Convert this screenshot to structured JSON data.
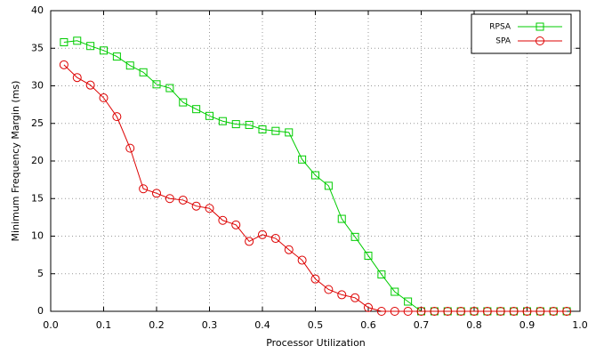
{
  "chart_data": {
    "type": "line",
    "x_label": "Processor Utilization",
    "y_label": "Minimum Frequency Margin (ms)",
    "x": [
      0.025,
      0.05,
      0.075,
      0.1,
      0.125,
      0.15,
      0.175,
      0.2,
      0.225,
      0.25,
      0.275,
      0.3,
      0.325,
      0.35,
      0.375,
      0.4,
      0.425,
      0.45,
      0.475,
      0.5,
      0.525,
      0.55,
      0.575,
      0.6,
      0.625,
      0.65,
      0.675,
      0.7,
      0.725,
      0.75,
      0.775,
      0.8,
      0.825,
      0.85,
      0.875,
      0.9,
      0.925,
      0.95,
      0.975
    ],
    "series": [
      {
        "name": "RPSA",
        "color": "#00cc00",
        "marker": "square",
        "values": [
          35.8,
          36.0,
          35.3,
          34.7,
          33.9,
          32.7,
          31.8,
          30.2,
          29.7,
          27.8,
          26.9,
          26.0,
          25.3,
          24.9,
          24.8,
          24.2,
          24.0,
          23.8,
          20.2,
          18.1,
          16.7,
          12.3,
          9.9,
          7.4,
          4.9,
          2.6,
          1.3,
          0,
          0,
          0,
          0,
          0,
          0,
          0,
          0,
          0,
          0,
          0,
          0
        ]
      },
      {
        "name": "SPA",
        "color": "#dd0000",
        "marker": "circle",
        "values": [
          32.8,
          31.1,
          30.1,
          28.4,
          25.9,
          21.7,
          16.3,
          15.7,
          15.0,
          14.8,
          14.0,
          13.7,
          12.1,
          11.5,
          9.3,
          10.2,
          9.7,
          8.2,
          6.8,
          4.3,
          2.9,
          2.2,
          1.8,
          0.5,
          0,
          0,
          0,
          0,
          0,
          0,
          0,
          0,
          0,
          0,
          0,
          0,
          0,
          0,
          0
        ]
      }
    ],
    "xlim": [
      0,
      1
    ],
    "xticks": [
      {
        "value": 0,
        "label": "0.0"
      },
      0.1,
      0.2,
      0.3,
      0.4,
      0.5,
      0.6,
      0.7,
      0.8,
      0.9,
      {
        "value": 1,
        "label": "1.0"
      }
    ],
    "ylim": [
      0,
      40
    ],
    "yticks": [
      0,
      5,
      10,
      15,
      20,
      25,
      30,
      35,
      40
    ],
    "grid": true,
    "legend": "top-right"
  }
}
